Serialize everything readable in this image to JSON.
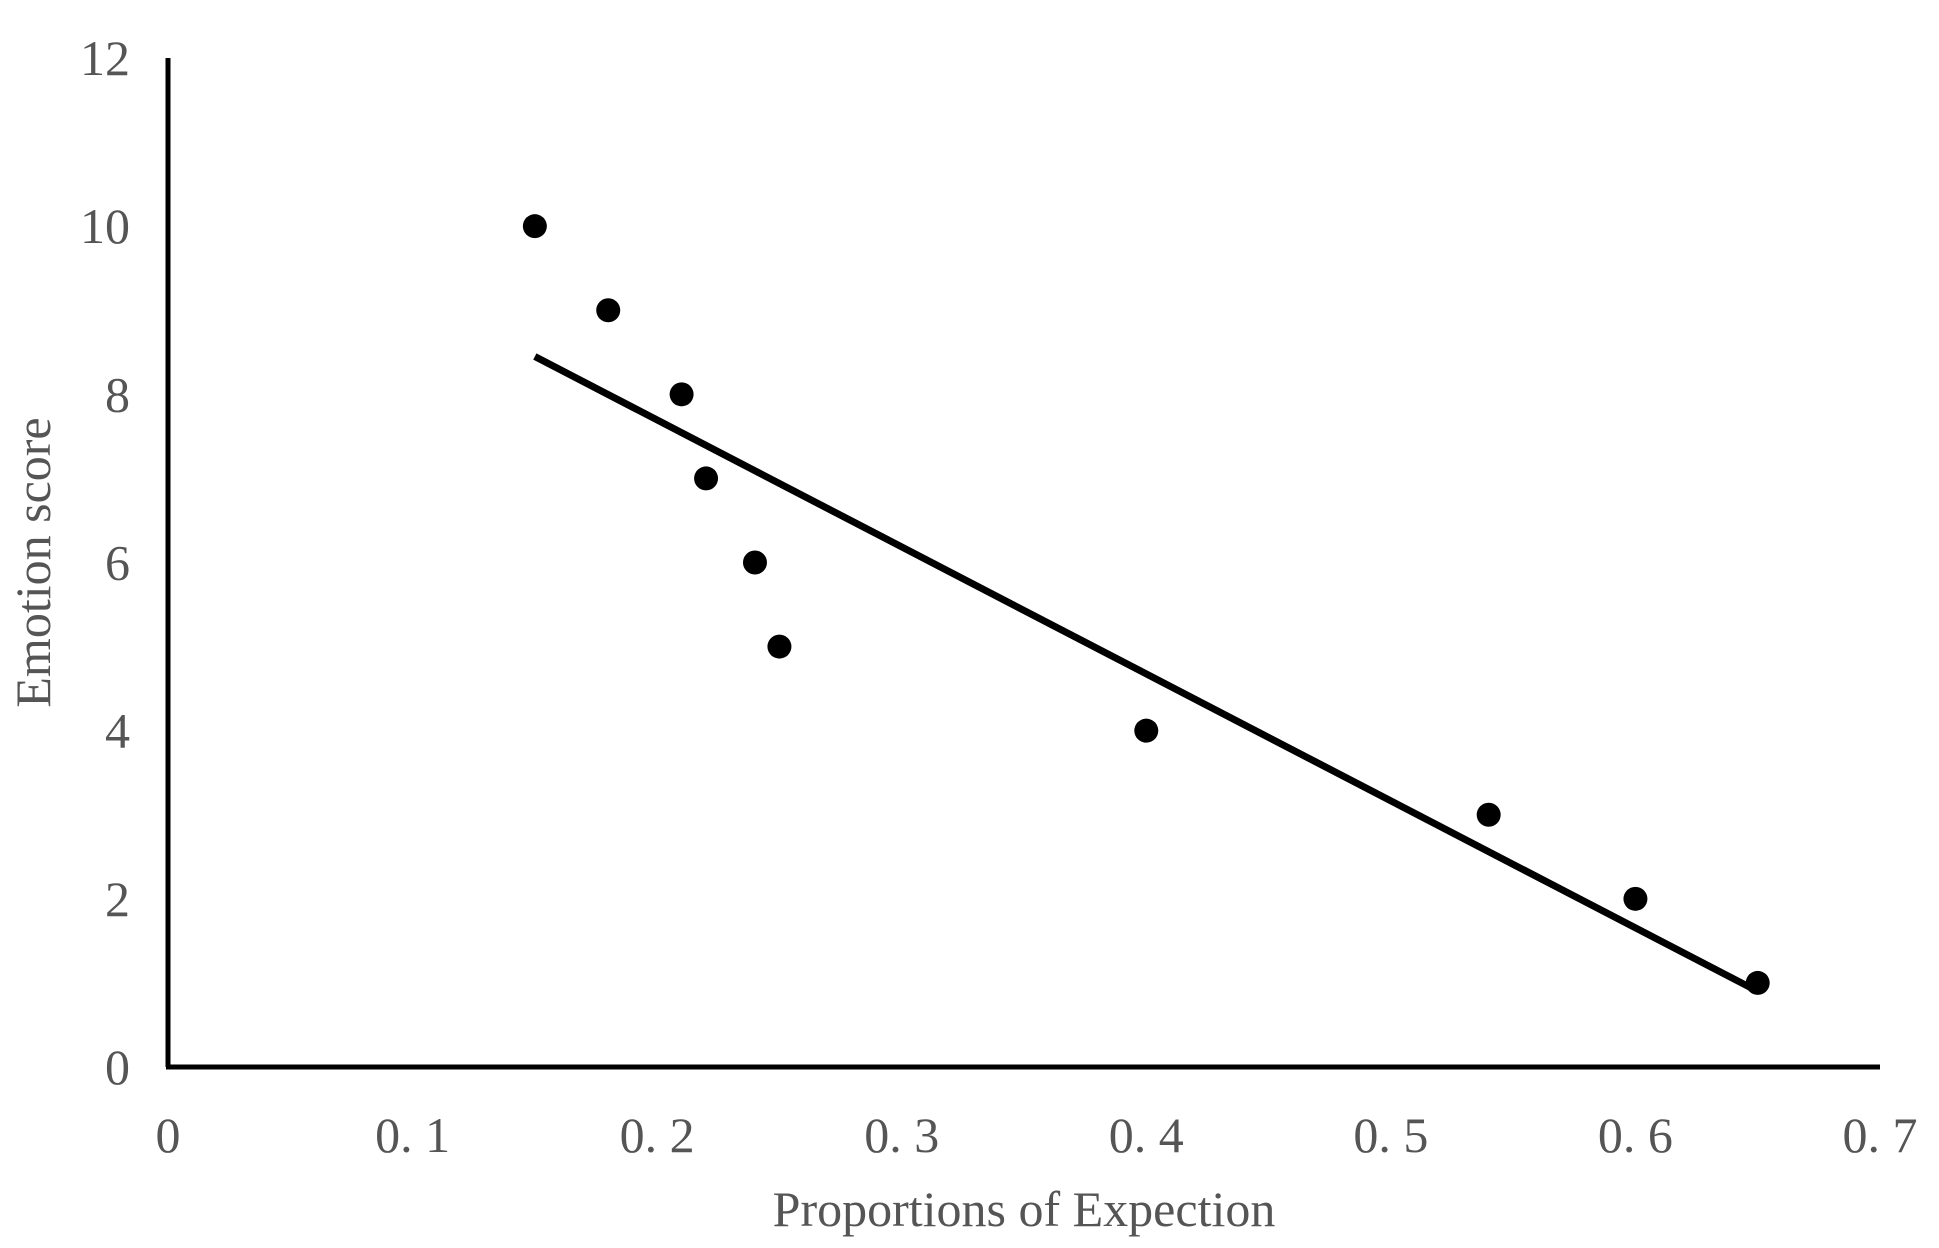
{
  "chart_data": {
    "type": "scatter",
    "title": "",
    "xlabel": "Proportions of Expection",
    "ylabel": "Emotion score",
    "xlim": [
      0,
      0.7
    ],
    "ylim": [
      0,
      12
    ],
    "x_ticks": [
      0,
      0.1,
      0.2,
      0.3,
      0.4,
      0.5,
      0.6,
      0.7
    ],
    "x_tick_labels": [
      "0",
      "0. 1",
      "0. 2",
      "0. 3",
      "0. 4",
      "0. 5",
      "0. 6",
      "0. 7"
    ],
    "y_ticks": [
      0,
      2,
      4,
      6,
      8,
      10,
      12
    ],
    "y_tick_labels": [
      "0",
      "2",
      "4",
      "6",
      "8",
      "10",
      "12"
    ],
    "grid": false,
    "legend": "none",
    "series": [
      {
        "x": [
          0.15,
          0.18,
          0.21,
          0.22,
          0.24,
          0.25,
          0.4,
          0.54,
          0.6,
          0.65
        ],
        "y": [
          10,
          9,
          8,
          7,
          6,
          5,
          4,
          3,
          2,
          1
        ],
        "color": "#000000"
      }
    ],
    "trendline": {
      "type": "linear",
      "x_start": 0.15,
      "y_start": 8.45,
      "x_end": 0.65,
      "y_end": 0.9,
      "color": "#000000"
    },
    "axis_color": "#000000",
    "text_color": "#555555"
  }
}
